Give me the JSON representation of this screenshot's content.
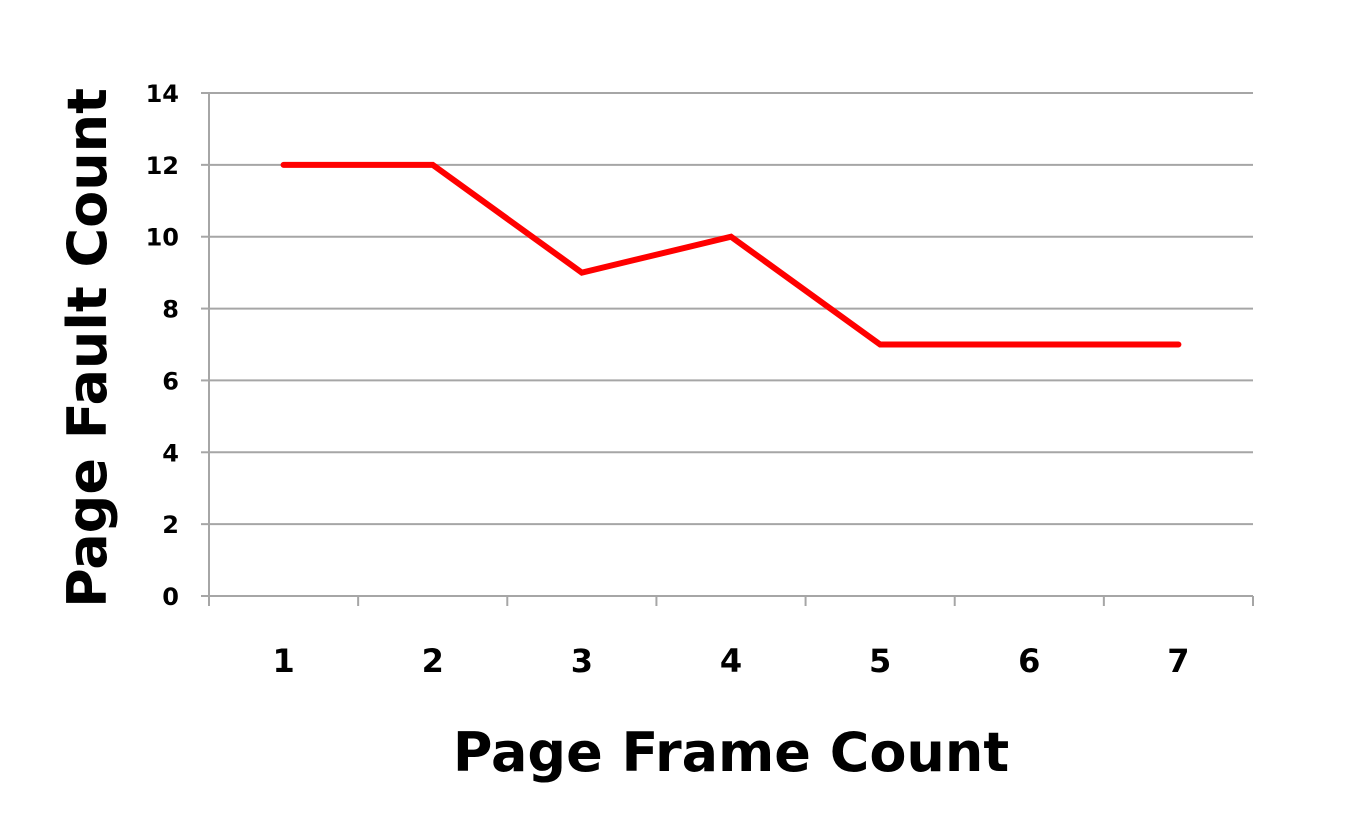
{
  "chart_data": {
    "type": "line",
    "title": "",
    "xlabel": "Page Frame Count",
    "ylabel": "Page Fault Count",
    "categories": [
      "1",
      "2",
      "3",
      "4",
      "5",
      "6",
      "7"
    ],
    "series": [
      {
        "values": [
          12,
          12,
          9,
          10,
          7,
          7,
          7
        ],
        "color": "#ff0000"
      }
    ],
    "ylim": [
      0,
      14
    ],
    "yticks": [
      "0",
      "2",
      "4",
      "6",
      "8",
      "10",
      "12",
      "14"
    ],
    "grid": true,
    "gridColor": "#a6a6a6",
    "legend": "none"
  }
}
